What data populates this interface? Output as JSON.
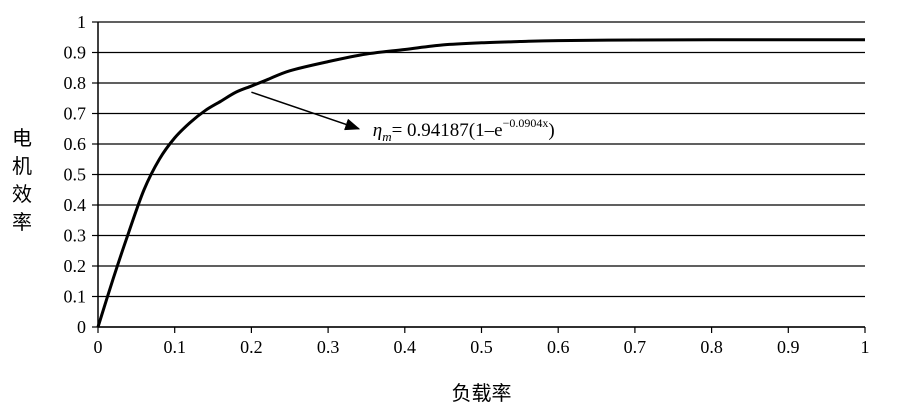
{
  "chart_data": {
    "type": "line",
    "title": "",
    "xlabel": "负载率",
    "ylabel": "电机效率",
    "xlim": [
      0,
      1
    ],
    "ylim": [
      0,
      1
    ],
    "x_ticks": [
      0,
      0.1,
      0.2,
      0.3,
      0.4,
      0.5,
      0.6,
      0.7,
      0.8,
      0.9,
      1
    ],
    "x_tick_labels": [
      "0",
      "0.1",
      "0.2",
      "0.3",
      "0.4",
      "0.5",
      "0.6",
      "0.7",
      "0.8",
      "0.9",
      "1"
    ],
    "y_ticks": [
      0,
      0.1,
      0.2,
      0.3,
      0.4,
      0.5,
      0.6,
      0.7,
      0.8,
      0.9,
      1
    ],
    "y_tick_labels": [
      "0",
      "0.1",
      "0.2",
      "0.3",
      "0.4",
      "0.5",
      "0.6",
      "0.7",
      "0.8",
      "0.9",
      "1"
    ],
    "grid": "horizontal",
    "legend": "none",
    "series": [
      {
        "x": [
          0,
          0.02,
          0.04,
          0.06,
          0.08,
          0.1,
          0.12,
          0.14,
          0.16,
          0.18,
          0.2,
          0.22,
          0.25,
          0.3,
          0.35,
          0.4,
          0.45,
          0.5,
          0.55,
          0.6,
          0.7,
          0.8,
          0.9,
          1.0
        ],
        "y": [
          0.0,
          0.16,
          0.31,
          0.45,
          0.55,
          0.62,
          0.67,
          0.71,
          0.74,
          0.77,
          0.79,
          0.81,
          0.84,
          0.87,
          0.895,
          0.91,
          0.925,
          0.932,
          0.936,
          0.939,
          0.941,
          0.942,
          0.942,
          0.942
        ],
        "color": "#000000"
      }
    ],
    "annotation": {
      "text_prefix": "η",
      "text_sub": "m",
      "text_main": "= 0.94187(1–e",
      "text_sup": "−0.0904x",
      "text_close": ")",
      "arrow_from": [
        0.2,
        0.77
      ],
      "arrow_to": [
        0.34,
        0.65
      ]
    }
  }
}
